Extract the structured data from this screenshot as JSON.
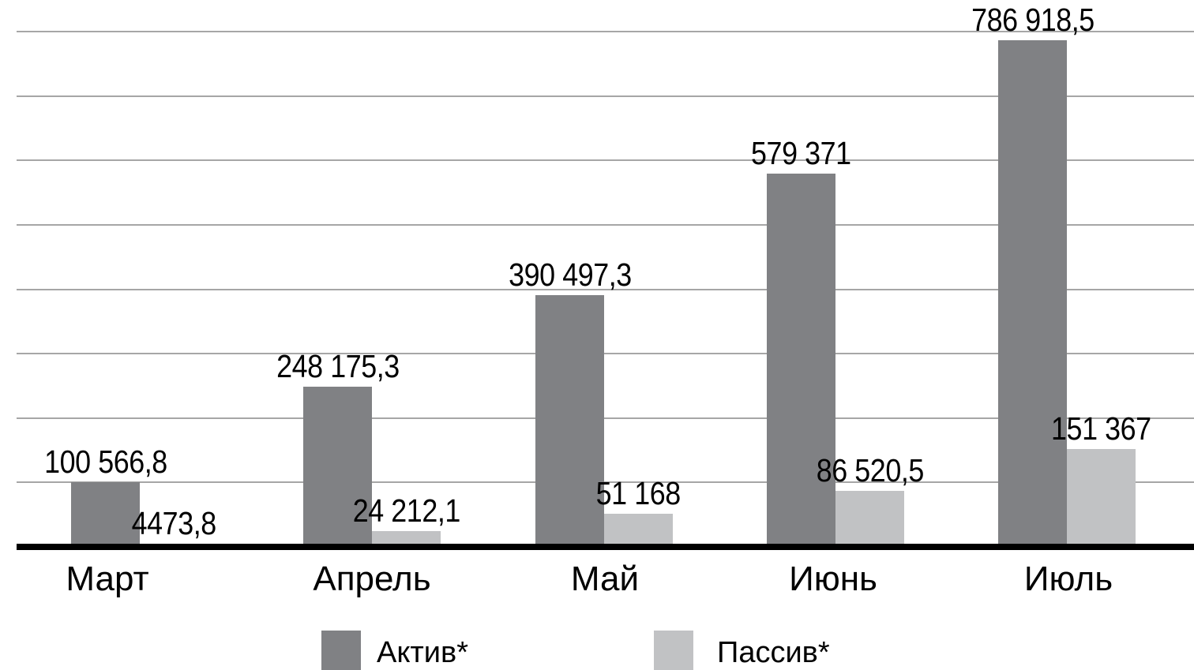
{
  "chart_data": {
    "type": "bar",
    "title": "",
    "xlabel": "",
    "ylabel": "",
    "categories": [
      "Март",
      "Апрель",
      "Май",
      "Июнь",
      "Июль"
    ],
    "series": [
      {
        "name": "Актив*",
        "color": "#808184",
        "values": [
          100566.8,
          248175.3,
          390497.3,
          579371,
          786918.5
        ],
        "labels": [
          "100 566,8",
          "248 175,3",
          "390 497,3",
          "579 371",
          "786 918,5"
        ]
      },
      {
        "name": "Пассив*",
        "color": "#c1c2c4",
        "values": [
          4473.8,
          24212.1,
          51168,
          86520.5,
          151367
        ],
        "labels": [
          "4473,8",
          "24 212,1",
          "51 168",
          "86 520,5",
          "151 367"
        ]
      }
    ],
    "ylim": [
      0,
      800000
    ],
    "y_axis_labels_visible": false,
    "gridlines": {
      "orientation": "horizontal",
      "count": 8,
      "interval": 100000,
      "color": "#a6a6a6"
    },
    "axis_line_color": "#000000",
    "background_color": "#ffffff",
    "data_labels": true,
    "legend_position": "bottom"
  }
}
